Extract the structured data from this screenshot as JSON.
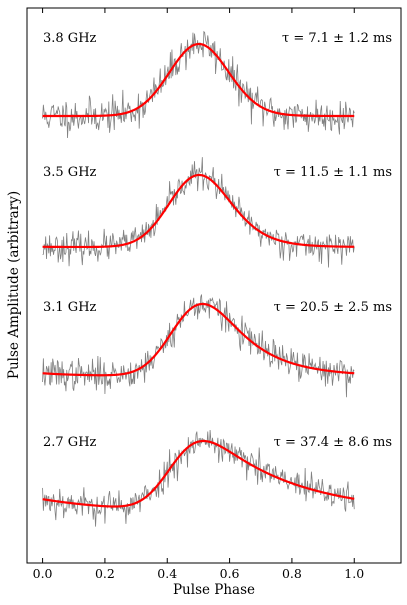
{
  "chart_data": {
    "type": "line",
    "xlabel": "Pulse Phase",
    "ylabel": "Pulse Amplitude (arbitrary)",
    "xlim": [
      -0.05,
      1.15
    ],
    "xticks": [
      "0.0",
      "0.2",
      "0.4",
      "0.6",
      "0.8",
      "1.0"
    ],
    "xtick_values": [
      0.0,
      0.2,
      0.4,
      0.6,
      0.8,
      1.0
    ],
    "grid": false,
    "colors": {
      "data": "#808080",
      "fit": "#ff0000",
      "axis": "#000000"
    },
    "series": [
      {
        "freq": "3.8 GHz",
        "tau": "τ = 7.1 ± 1.2 ms",
        "mu": 0.47,
        "sigma": 0.09,
        "tau_phase": 0.035,
        "noise": 0.22,
        "seed": 11
      },
      {
        "freq": "3.5 GHz",
        "tau": "τ = 11.5 ± 1.1 ms",
        "mu": 0.45,
        "sigma": 0.085,
        "tau_phase": 0.07,
        "noise": 0.18,
        "seed": 23
      },
      {
        "freq": "3.1 GHz",
        "tau": "τ = 20.5 ± 2.5 ms",
        "mu": 0.44,
        "sigma": 0.08,
        "tau_phase": 0.13,
        "noise": 0.2,
        "seed": 37
      },
      {
        "freq": "2.7 GHz",
        "tau": "τ = 37.4 ± 8.6 ms",
        "mu": 0.42,
        "sigma": 0.075,
        "tau_phase": 0.27,
        "noise": 0.2,
        "seed": 53
      }
    ]
  }
}
